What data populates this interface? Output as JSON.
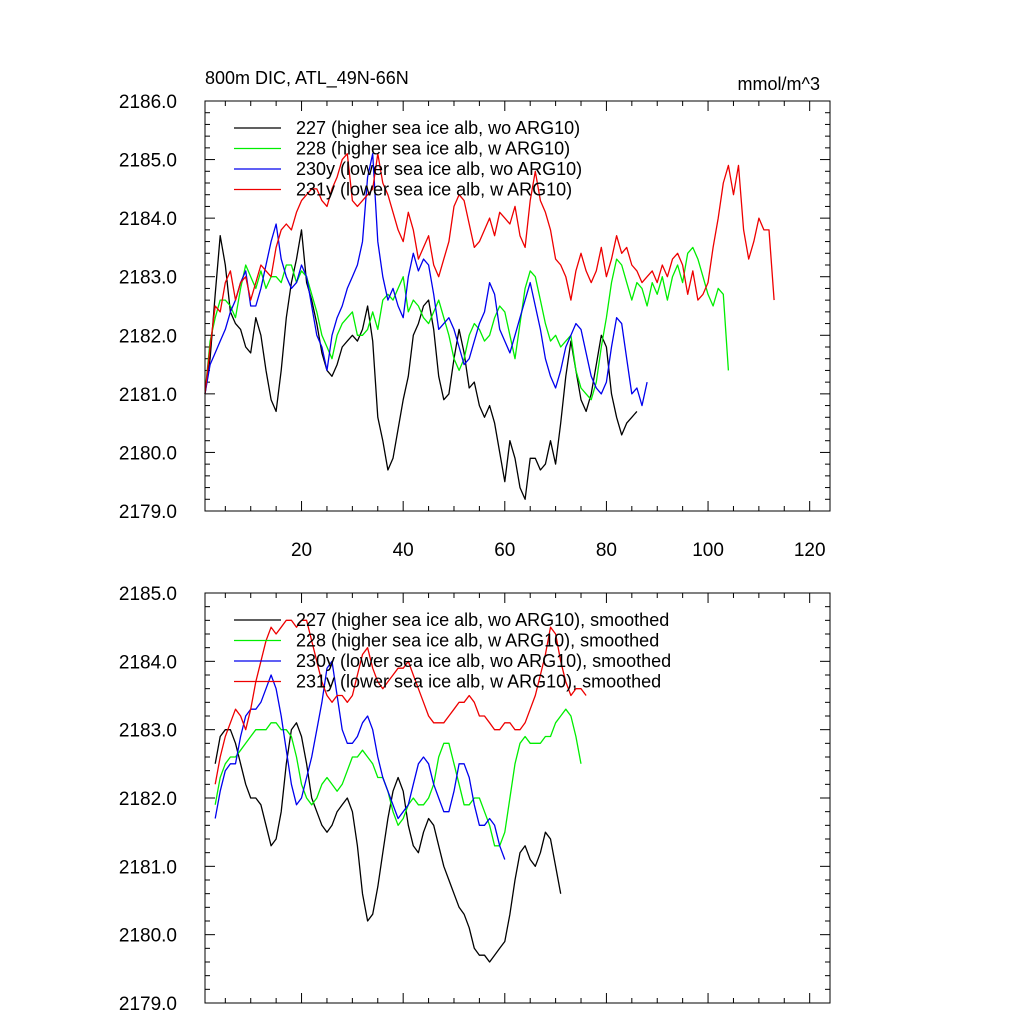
{
  "chart_data": [
    {
      "type": "line",
      "title": "800m DIC, ATL_49N-66N",
      "units": "mmol/m^3",
      "xlim": [
        1,
        124
      ],
      "ylim": [
        2179.0,
        2186.0
      ],
      "x_ticks": [
        20,
        40,
        60,
        80,
        100,
        120
      ],
      "y_ticks": [
        "2179.0",
        "2180.0",
        "2181.0",
        "2182.0",
        "2183.0",
        "2184.0",
        "2185.0",
        "2186.0"
      ],
      "legend_position": "top-left",
      "series": [
        {
          "name": "227 (higher sea ice alb, wo ARG10)",
          "color": "#000000",
          "values": [
            2181.0,
            2181.6,
            2182.7,
            2183.7,
            2183.2,
            2182.4,
            2182.2,
            2182.1,
            2181.8,
            2181.7,
            2182.3,
            2182.0,
            2181.4,
            2180.9,
            2180.7,
            2181.4,
            2182.3,
            2182.9,
            2183.3,
            2183.8,
            2182.9,
            2182.6,
            2182.2,
            2181.7,
            2181.4,
            2181.3,
            2181.5,
            2181.8,
            2181.9,
            2182.0,
            2181.9,
            2182.1,
            2182.5,
            2181.9,
            2180.6,
            2180.2,
            2179.7,
            2179.9,
            2180.4,
            2180.9,
            2181.3,
            2182.0,
            2182.2,
            2182.5,
            2182.6,
            2182.1,
            2181.3,
            2180.9,
            2181.0,
            2181.6,
            2182.1,
            2181.7,
            2181.1,
            2181.2,
            2180.8,
            2180.6,
            2180.8,
            2180.5,
            2180.0,
            2179.5,
            2180.2,
            2179.9,
            2179.4,
            2179.2,
            2179.9,
            2179.9,
            2179.7,
            2179.8,
            2180.2,
            2179.8,
            2180.5,
            2181.3,
            2181.9,
            2181.4,
            2180.9,
            2180.7,
            2181.0,
            2181.5,
            2182.0,
            2181.8,
            2181.0,
            2180.6,
            2180.3,
            2180.5,
            2180.6,
            2180.7
          ]
        },
        {
          "name": "228 (higher sea ice alb, w ARG10)",
          "color": "#00ee00",
          "values": [
            2181.0,
            2181.9,
            2182.3,
            2182.6,
            2182.6,
            2182.5,
            2182.3,
            2182.8,
            2183.2,
            2183.0,
            2182.8,
            2183.1,
            2182.8,
            2183.0,
            2183.0,
            2182.9,
            2183.2,
            2183.2,
            2182.9,
            2183.1,
            2183.0,
            2182.7,
            2182.4,
            2182.0,
            2181.8,
            2181.6,
            2182.0,
            2182.2,
            2182.3,
            2182.4,
            2182.0,
            2182.0,
            2182.1,
            2182.4,
            2182.1,
            2182.6,
            2182.7,
            2182.6,
            2182.8,
            2183.0,
            2182.4,
            2182.6,
            2182.5,
            2182.3,
            2182.2,
            2182.4,
            2182.6,
            2182.3,
            2182.0,
            2181.6,
            2181.4,
            2181.6,
            2182.0,
            2182.2,
            2182.1,
            2181.9,
            2182.0,
            2182.3,
            2182.5,
            2182.4,
            2182.0,
            2181.6,
            2182.2,
            2182.8,
            2183.1,
            2183.0,
            2182.6,
            2182.2,
            2181.9,
            2182.0,
            2181.8,
            2181.9,
            2182.0,
            2181.4,
            2181.1,
            2181.0,
            2180.9,
            2181.2,
            2181.8,
            2182.3,
            2182.9,
            2183.3,
            2183.2,
            2182.9,
            2182.6,
            2182.9,
            2182.8,
            2182.5,
            2182.9,
            2182.7,
            2183.0,
            2182.6,
            2183.0,
            2183.2,
            2182.9,
            2183.4,
            2183.5,
            2183.3,
            2183.0,
            2182.7,
            2182.5,
            2182.8,
            2182.7,
            2181.4
          ]
        },
        {
          "name": "230y (lower sea ice alb, wo ARG10)",
          "color": "#0000ee",
          "values": [
            2181.0,
            2181.5,
            2181.7,
            2181.9,
            2182.1,
            2182.4,
            2182.6,
            2182.9,
            2183.1,
            2182.5,
            2182.5,
            2182.8,
            2183.2,
            2183.6,
            2183.9,
            2183.3,
            2183.0,
            2182.8,
            2182.9,
            2183.2,
            2183.0,
            2182.5,
            2182.0,
            2181.8,
            2181.4,
            2182.0,
            2182.3,
            2182.5,
            2182.8,
            2183.0,
            2183.2,
            2183.6,
            2184.7,
            2185.1,
            2183.6,
            2183.0,
            2182.6,
            2182.8,
            2182.5,
            2182.3,
            2183.0,
            2183.4,
            2183.1,
            2183.3,
            2183.2,
            2182.7,
            2182.1,
            2182.2,
            2182.3,
            2182.1,
            2181.8,
            2181.5,
            2181.6,
            2181.9,
            2182.2,
            2182.4,
            2182.9,
            2182.7,
            2182.1,
            2181.9,
            2181.7,
            2182.0,
            2182.3,
            2182.6,
            2182.9,
            2182.5,
            2182.1,
            2181.6,
            2181.3,
            2181.1,
            2181.4,
            2181.8,
            2182.0,
            2182.2,
            2182.1,
            2181.7,
            2181.3,
            2181.1,
            2181.0,
            2181.2,
            2181.8,
            2182.3,
            2182.2,
            2181.6,
            2181.0,
            2181.1,
            2180.8,
            2181.2
          ]
        },
        {
          "name": "231y (lower sea ice alb, w ARG10)",
          "color": "#ee0000",
          "values": [
            2181.0,
            2181.8,
            2182.5,
            2182.4,
            2182.9,
            2183.1,
            2182.6,
            2182.9,
            2183.0,
            2182.6,
            2182.9,
            2183.2,
            2183.1,
            2183.0,
            2183.5,
            2183.8,
            2183.9,
            2183.8,
            2184.1,
            2184.3,
            2184.4,
            2184.5,
            2184.5,
            2184.3,
            2184.2,
            2184.5,
            2184.7,
            2185.0,
            2185.1,
            2184.3,
            2184.2,
            2184.3,
            2184.4,
            2184.5,
            2185.1,
            2184.6,
            2184.4,
            2184.1,
            2183.8,
            2183.6,
            2184.1,
            2183.8,
            2183.3,
            2183.5,
            2183.7,
            2183.2,
            2183.0,
            2183.3,
            2183.6,
            2184.2,
            2184.4,
            2184.3,
            2183.9,
            2183.5,
            2183.6,
            2183.8,
            2184.0,
            2183.7,
            2184.1,
            2184.0,
            2183.9,
            2184.2,
            2183.7,
            2183.5,
            2184.3,
            2184.8,
            2184.3,
            2184.1,
            2183.8,
            2183.3,
            2183.2,
            2183.0,
            2182.6,
            2183.1,
            2183.4,
            2183.1,
            2182.9,
            2183.1,
            2183.5,
            2183.0,
            2183.3,
            2183.7,
            2183.4,
            2183.5,
            2183.2,
            2183.1,
            2182.9,
            2183.0,
            2183.1,
            2182.9,
            2183.2,
            2183.0,
            2183.3,
            2183.4,
            2183.2,
            2182.7,
            2183.1,
            2182.6,
            2182.7,
            2182.9,
            2183.5,
            2184.0,
            2184.6,
            2184.9,
            2184.4,
            2184.9,
            2183.8,
            2183.3,
            2183.6,
            2184.0,
            2183.8,
            2183.8,
            2182.6
          ]
        }
      ]
    },
    {
      "type": "line",
      "title": "",
      "xlim": [
        1,
        124
      ],
      "ylim": [
        2179.0,
        2185.0
      ],
      "y_ticks": [
        "2179.0",
        "2180.0",
        "2181.0",
        "2182.0",
        "2183.0",
        "2184.0",
        "2185.0"
      ],
      "legend_position": "top-left",
      "series": [
        {
          "name": "227 (higher sea ice alb, wo ARG10), smoothed",
          "color": "#000000",
          "x_start": 3,
          "values": [
            2182.5,
            2182.9,
            2183.0,
            2183.0,
            2182.8,
            2182.5,
            2182.2,
            2182.0,
            2182.0,
            2181.9,
            2181.6,
            2181.3,
            2181.4,
            2181.8,
            2182.5,
            2183.0,
            2183.1,
            2182.9,
            2182.5,
            2182.0,
            2181.8,
            2181.6,
            2181.5,
            2181.6,
            2181.8,
            2181.9,
            2182.0,
            2181.8,
            2181.3,
            2180.6,
            2180.2,
            2180.3,
            2180.7,
            2181.2,
            2181.7,
            2182.1,
            2182.3,
            2182.1,
            2181.6,
            2181.3,
            2181.2,
            2181.5,
            2181.7,
            2181.6,
            2181.3,
            2181.0,
            2180.8,
            2180.6,
            2180.4,
            2180.3,
            2180.1,
            2179.8,
            2179.7,
            2179.7,
            2179.6,
            2179.7,
            2179.8,
            2179.9,
            2180.3,
            2180.8,
            2181.2,
            2181.3,
            2181.1,
            2181.0,
            2181.2,
            2181.5,
            2181.4,
            2181.0,
            2180.6
          ]
        },
        {
          "name": "228 (higher sea ice alb, w ARG10), smoothed",
          "color": "#00ee00",
          "x_start": 3,
          "values": [
            2181.9,
            2182.3,
            2182.5,
            2182.6,
            2182.6,
            2182.7,
            2182.8,
            2182.9,
            2183.0,
            2183.0,
            2183.0,
            2183.1,
            2183.1,
            2183.0,
            2183.0,
            2182.9,
            2182.6,
            2182.2,
            2182.0,
            2181.9,
            2182.0,
            2182.2,
            2182.3,
            2182.2,
            2182.1,
            2182.2,
            2182.4,
            2182.6,
            2182.6,
            2182.7,
            2182.6,
            2182.5,
            2182.3,
            2182.3,
            2182.1,
            2181.8,
            2181.6,
            2181.7,
            2181.9,
            2182.0,
            2181.9,
            2181.9,
            2182.0,
            2182.2,
            2182.6,
            2182.8,
            2182.8,
            2182.5,
            2182.2,
            2181.9,
            2181.9,
            2182.0,
            2182.0,
            2181.8,
            2181.6,
            2181.3,
            2181.3,
            2181.5,
            2182.0,
            2182.5,
            2182.8,
            2182.9,
            2182.8,
            2182.8,
            2182.8,
            2182.9,
            2182.9,
            2183.1,
            2183.2,
            2183.3,
            2183.2,
            2182.9,
            2182.5
          ]
        },
        {
          "name": "230y (lower sea ice alb, wo ARG10), smoothed",
          "color": "#0000ee",
          "x_start": 3,
          "values": [
            2181.7,
            2182.1,
            2182.4,
            2182.5,
            2182.5,
            2182.9,
            2183.2,
            2183.3,
            2183.3,
            2183.4,
            2183.6,
            2183.8,
            2183.6,
            2183.2,
            2182.7,
            2182.2,
            2181.9,
            2182.0,
            2182.3,
            2182.6,
            2183.0,
            2183.4,
            2183.9,
            2184.0,
            2183.5,
            2183.0,
            2182.8,
            2182.8,
            2182.9,
            2183.1,
            2183.2,
            2183.0,
            2182.6,
            2182.3,
            2182.1,
            2181.9,
            2181.7,
            2181.8,
            2181.9,
            2182.2,
            2182.5,
            2182.6,
            2182.5,
            2182.2,
            2182.0,
            2181.8,
            2181.8,
            2182.1,
            2182.5,
            2182.5,
            2182.3,
            2181.9,
            2181.6,
            2181.6,
            2181.7,
            2181.6,
            2181.3,
            2181.1
          ]
        },
        {
          "name": "231y (lower sea ice alb, w ARG10), smoothed",
          "color": "#ee0000",
          "x_start": 3,
          "values": [
            2182.2,
            2182.6,
            2182.9,
            2183.1,
            2183.3,
            2183.2,
            2183.0,
            2183.3,
            2183.7,
            2184.0,
            2184.3,
            2184.5,
            2184.4,
            2184.5,
            2184.6,
            2184.6,
            2184.5,
            2184.6,
            2184.6,
            2184.3,
            2184.0,
            2183.7,
            2183.5,
            2183.4,
            2183.5,
            2183.5,
            2183.4,
            2183.5,
            2183.8,
            2184.1,
            2184.2,
            2183.9,
            2183.7,
            2183.6,
            2183.7,
            2183.8,
            2183.9,
            2183.9,
            2184.0,
            2183.8,
            2183.6,
            2183.4,
            2183.2,
            2183.1,
            2183.1,
            2183.1,
            2183.2,
            2183.3,
            2183.4,
            2183.4,
            2183.5,
            2183.4,
            2183.2,
            2183.2,
            2183.1,
            2183.0,
            2183.0,
            2183.1,
            2183.1,
            2183.0,
            2183.0,
            2183.1,
            2183.3,
            2183.5,
            2183.8,
            2184.1,
            2184.5,
            2184.4,
            2184.0,
            2183.7,
            2183.5,
            2183.6,
            2183.6,
            2183.5
          ]
        }
      ]
    }
  ]
}
